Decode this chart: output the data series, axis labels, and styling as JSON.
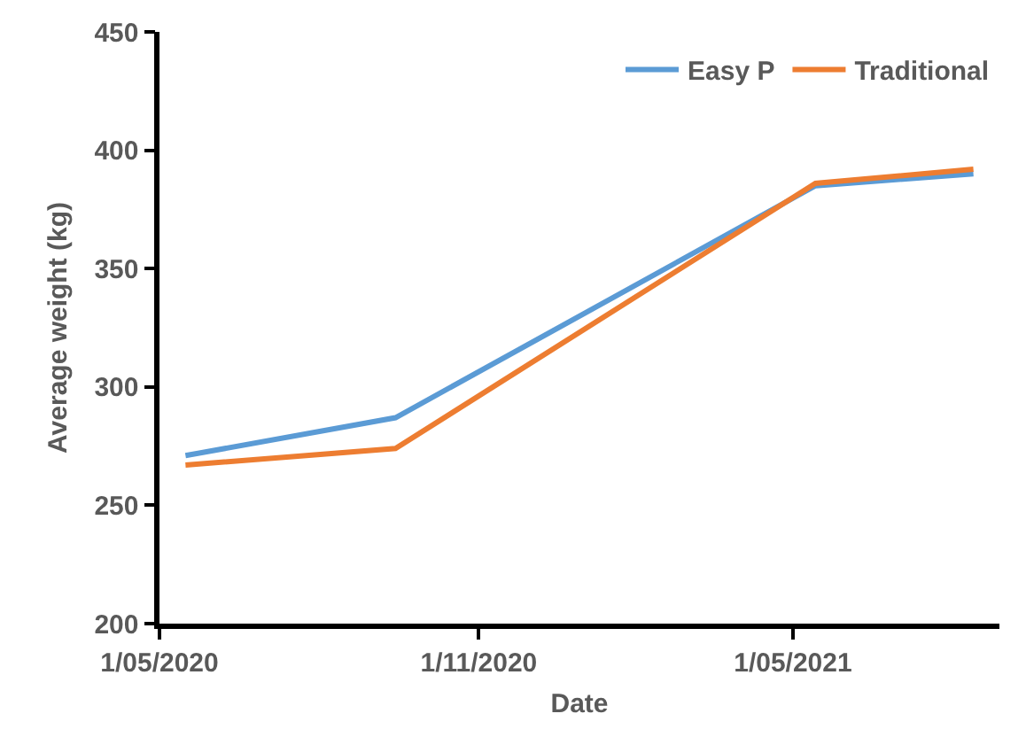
{
  "chart_data": {
    "type": "line",
    "xlabel": "Date",
    "ylabel": "Average weight (kg)",
    "x": [
      "2020-05-16",
      "2020-09-14",
      "2021-05-14",
      "2021-08-13"
    ],
    "series": [
      {
        "name": "Easy P",
        "color": "#5b9bd5",
        "values": [
          271,
          287,
          385,
          390
        ]
      },
      {
        "name": "Traditional",
        "color": "#ed7d31",
        "values": [
          267,
          274,
          386,
          392
        ]
      }
    ],
    "xlim": [
      "2020-05-01",
      "2021-08-28"
    ],
    "xticks": [
      {
        "value": "2020-05-01",
        "label": "1/05/2020"
      },
      {
        "value": "2020-11-01",
        "label": "1/11/2020"
      },
      {
        "value": "2021-05-01",
        "label": "1/05/2021"
      }
    ],
    "ylim": [
      200,
      450
    ],
    "yticks": [
      200,
      250,
      300,
      350,
      400,
      450
    ],
    "legend": "top right",
    "line_style": "solid"
  }
}
